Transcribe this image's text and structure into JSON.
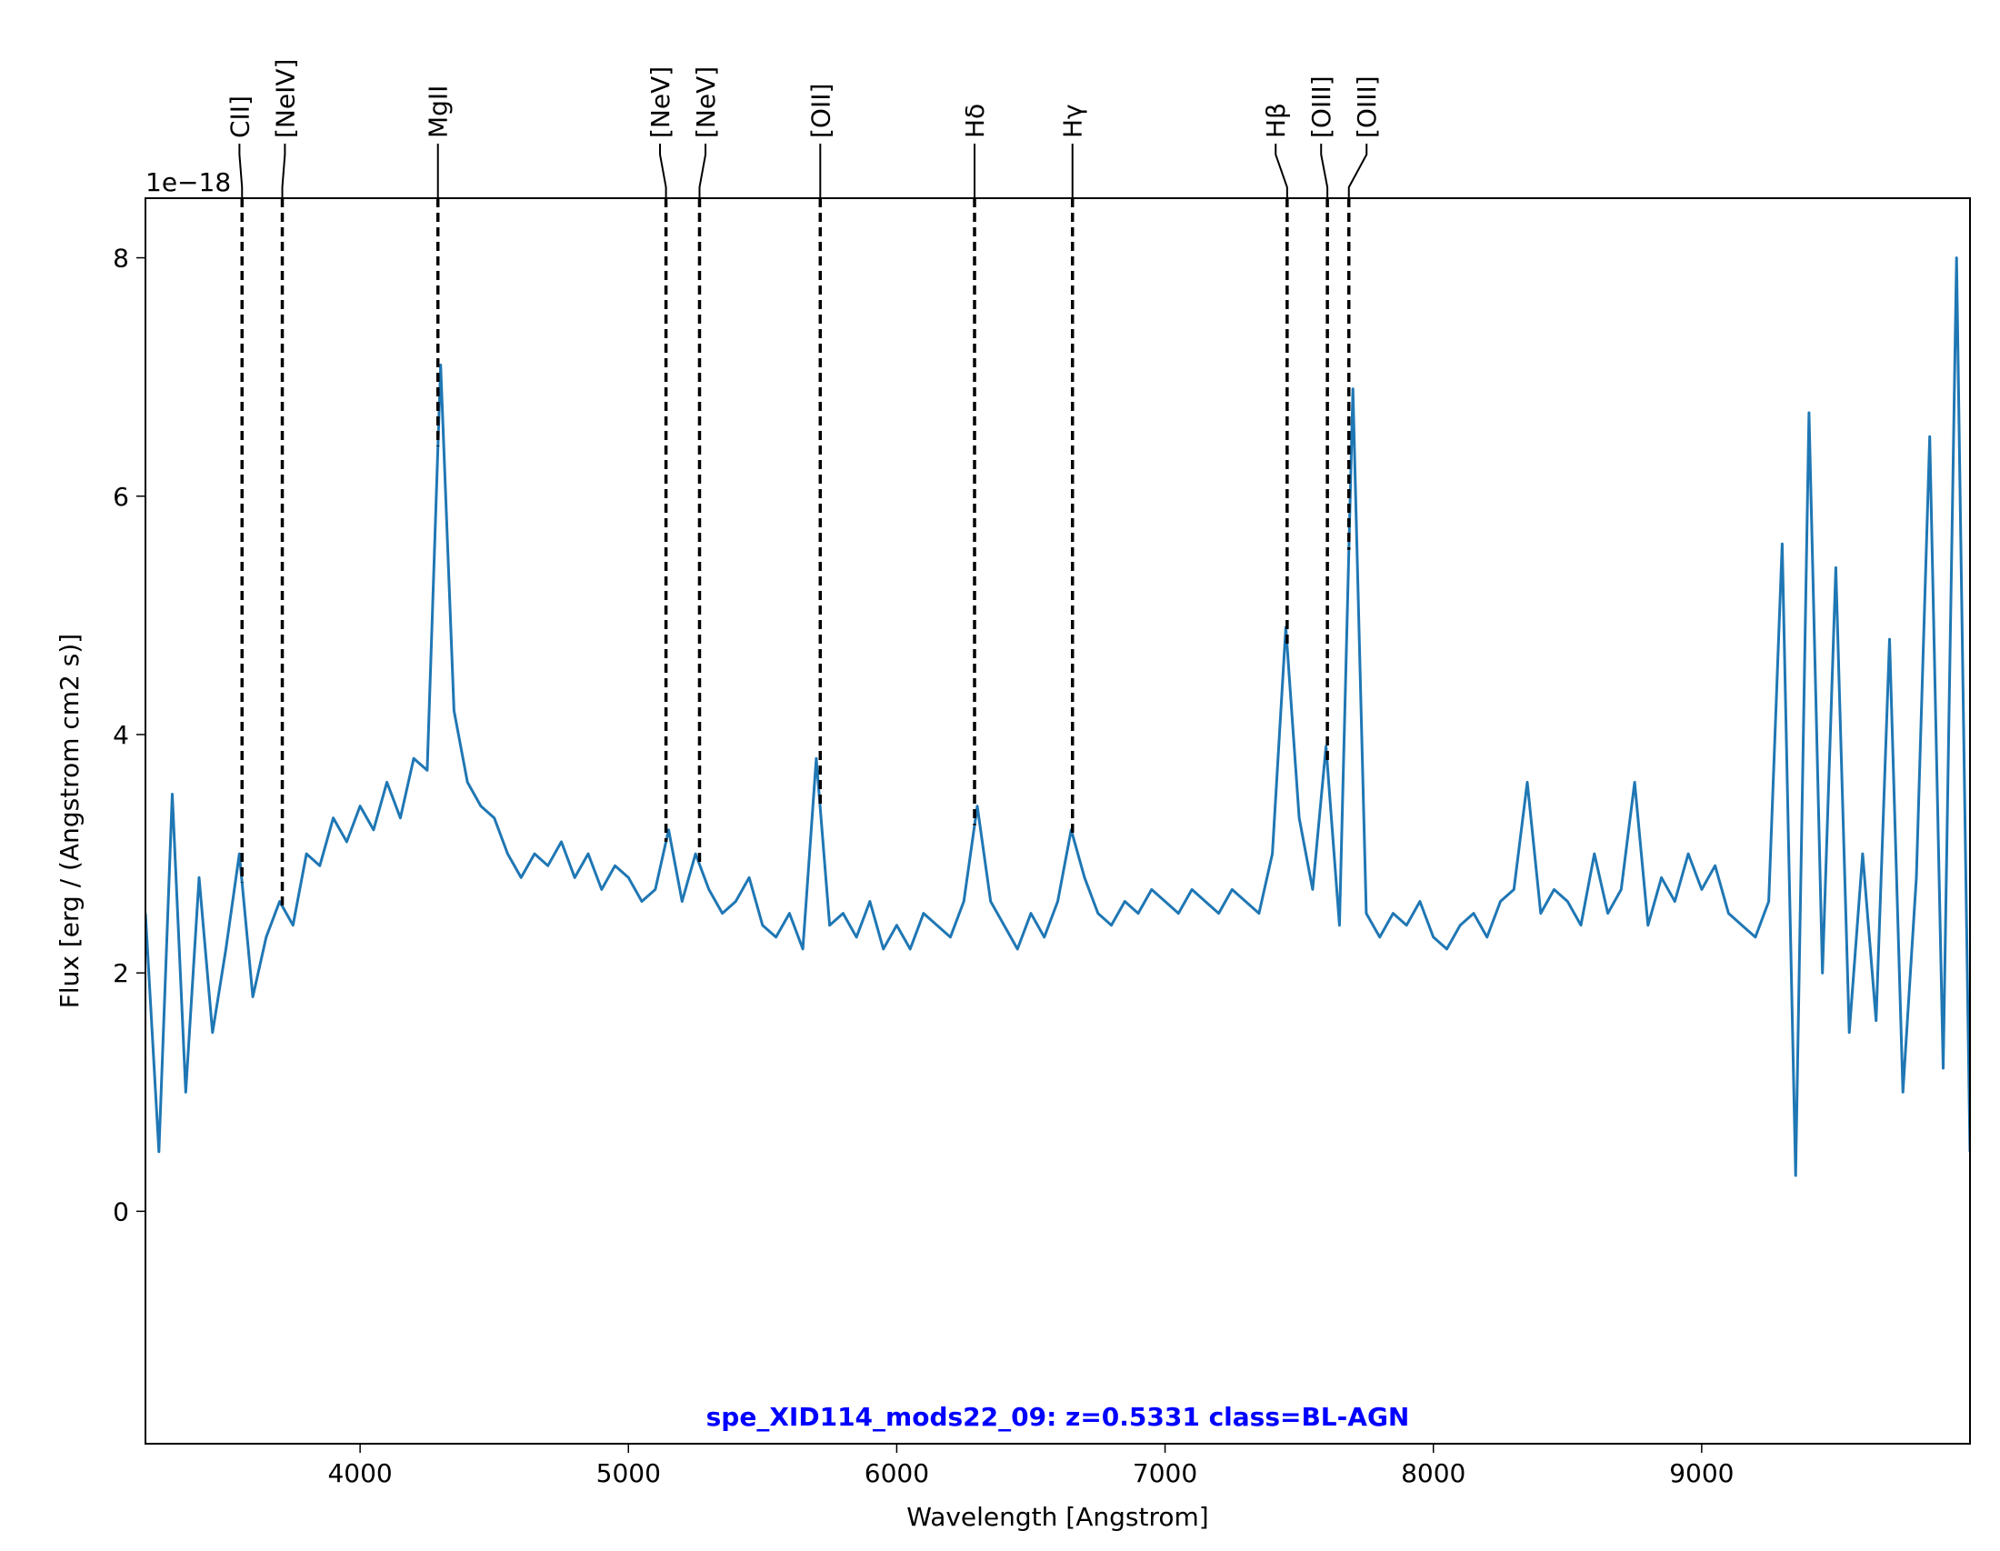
{
  "chart_data": {
    "type": "line",
    "title": "spe_XID114_mods22_09: z=0.5331 class=BL-AGN",
    "x_label": "Wavelength [Angstrom]",
    "y_label": "Flux [erg / (Angstrom cm2 s)]",
    "y_offset_label": "1e−18",
    "color": "#1f77b4",
    "title_color": "#0000ff",
    "xlim": [
      3200,
      10000
    ],
    "ylim": [
      -1.95,
      8.5
    ],
    "xticks": [
      4000,
      5000,
      6000,
      7000,
      8000,
      9000
    ],
    "yticks": [
      0,
      2,
      4,
      6,
      8
    ],
    "x": [
      3200,
      3250,
      3300,
      3350,
      3400,
      3450,
      3500,
      3550,
      3600,
      3650,
      3700,
      3750,
      3800,
      3850,
      3900,
      3950,
      4000,
      4050,
      4100,
      4150,
      4200,
      4250,
      4300,
      4350,
      4400,
      4450,
      4500,
      4550,
      4600,
      4650,
      4700,
      4750,
      4800,
      4850,
      4900,
      4950,
      5000,
      5050,
      5100,
      5150,
      5200,
      5250,
      5300,
      5350,
      5400,
      5450,
      5500,
      5550,
      5600,
      5650,
      5700,
      5750,
      5800,
      5850,
      5900,
      5950,
      6000,
      6050,
      6100,
      6150,
      6200,
      6250,
      6300,
      6350,
      6400,
      6450,
      6500,
      6550,
      6600,
      6650,
      6700,
      6750,
      6800,
      6850,
      6900,
      6950,
      7000,
      7050,
      7100,
      7150,
      7200,
      7250,
      7300,
      7350,
      7400,
      7450,
      7500,
      7550,
      7600,
      7650,
      7700,
      7750,
      7800,
      7850,
      7900,
      7950,
      8000,
      8050,
      8100,
      8150,
      8200,
      8250,
      8300,
      8350,
      8400,
      8450,
      8500,
      8550,
      8600,
      8650,
      8700,
      8750,
      8800,
      8850,
      8900,
      8950,
      9000,
      9050,
      9100,
      9150,
      9200,
      9250,
      9300,
      9350,
      9400,
      9450,
      9500,
      9550,
      9600,
      9650,
      9700,
      9750,
      9800,
      9850,
      9900,
      9950,
      10000
    ],
    "values": [
      2.5,
      0.5,
      3.5,
      1.0,
      2.8,
      1.5,
      2.2,
      3.0,
      1.8,
      2.3,
      2.6,
      2.4,
      3.0,
      2.9,
      3.3,
      3.1,
      3.4,
      3.2,
      3.6,
      3.3,
      3.8,
      3.7,
      7.1,
      4.2,
      3.6,
      3.4,
      3.3,
      3.0,
      2.8,
      3.0,
      2.9,
      3.1,
      2.8,
      3.0,
      2.7,
      2.9,
      2.8,
      2.6,
      2.7,
      3.2,
      2.6,
      3.0,
      2.7,
      2.5,
      2.6,
      2.8,
      2.4,
      2.3,
      2.5,
      2.2,
      3.8,
      2.4,
      2.5,
      2.3,
      2.6,
      2.2,
      2.4,
      2.2,
      2.5,
      2.4,
      2.3,
      2.6,
      3.4,
      2.6,
      2.4,
      2.2,
      2.5,
      2.3,
      2.6,
      3.2,
      2.8,
      2.5,
      2.4,
      2.6,
      2.5,
      2.7,
      2.6,
      2.5,
      2.7,
      2.6,
      2.5,
      2.7,
      2.6,
      2.5,
      3.0,
      4.9,
      3.3,
      2.7,
      3.9,
      2.4,
      6.9,
      2.5,
      2.3,
      2.5,
      2.4,
      2.6,
      2.3,
      2.2,
      2.4,
      2.5,
      2.3,
      2.6,
      2.7,
      3.6,
      2.5,
      2.7,
      2.6,
      2.4,
      3.0,
      2.5,
      2.7,
      3.6,
      2.4,
      2.8,
      2.6,
      3.0,
      2.7,
      2.9,
      2.5,
      2.4,
      2.3,
      2.6,
      5.6,
      0.3,
      6.7,
      2.0,
      5.4,
      1.5,
      3.0,
      1.6,
      4.8,
      1.0,
      2.8,
      6.5,
      1.2,
      8.0,
      0.5
    ],
    "annotations": [
      {
        "label": "CII]",
        "x": 3560
      },
      {
        "label": "[NeIV]",
        "x": 3710
      },
      {
        "label": "MgII",
        "x": 4290
      },
      {
        "label": "[NeV]",
        "x": 5140
      },
      {
        "label": "[NeV]",
        "x": 5265
      },
      {
        "label": "[OII]",
        "x": 5715
      },
      {
        "label": "Hδ",
        "x": 6290
      },
      {
        "label": "Hγ",
        "x": 6655
      },
      {
        "label": "Hβ",
        "x": 7455
      },
      {
        "label": "[OIII]",
        "x": 7605
      },
      {
        "label": "[OIII]",
        "x": 7685
      }
    ]
  }
}
